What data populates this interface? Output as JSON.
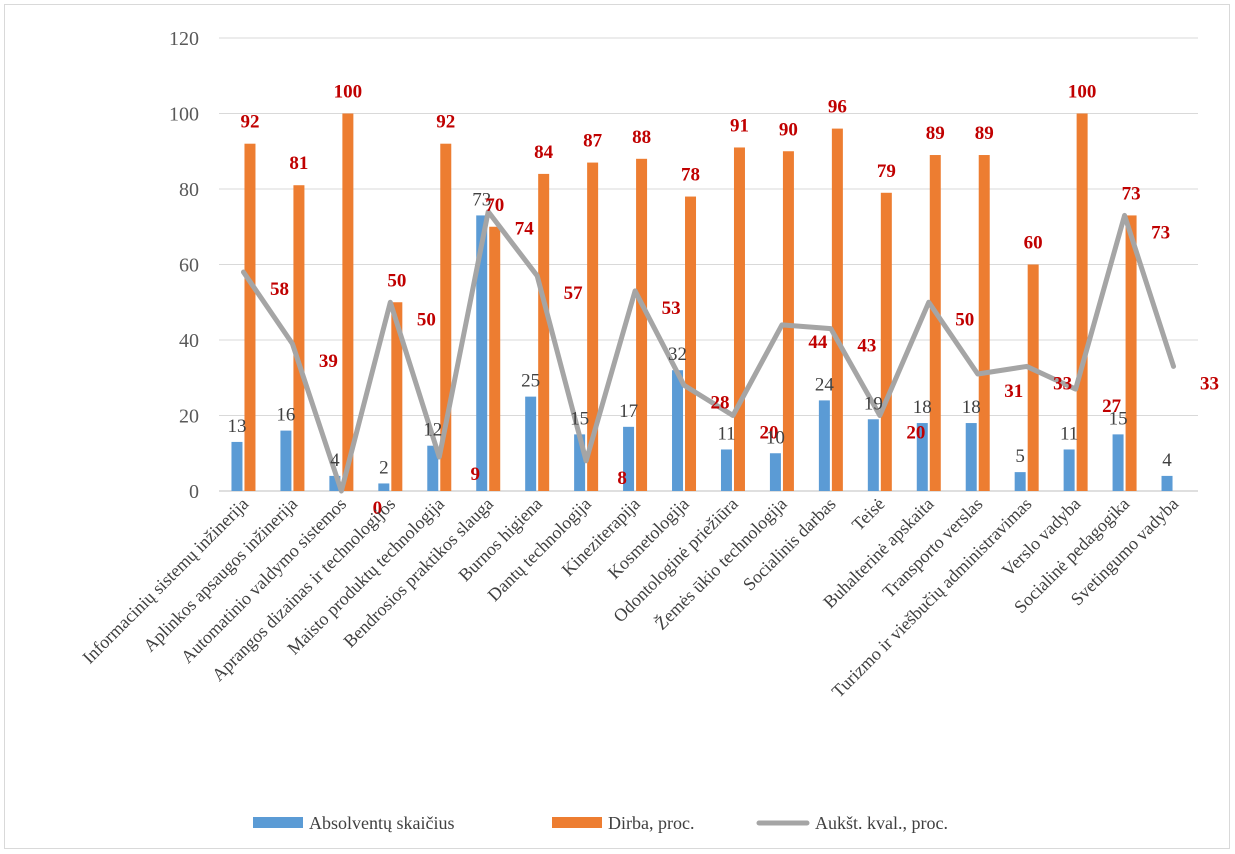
{
  "chart_data": {
    "type": "bar",
    "title": "",
    "xlabel": "",
    "ylabel": "",
    "ylim": [
      0,
      120
    ],
    "yticks": [
      0,
      20,
      40,
      60,
      80,
      100,
      120
    ],
    "grid": true,
    "legend_position": "bottom",
    "categories": [
      "Informacinių sistemų inžinerija",
      "Aplinkos apsaugos inžinerija",
      "Automatinio valdymo sistemos",
      "Aprangos dizainas ir technologijos",
      "Maisto produktų technologija",
      "Bendrosios praktikos slauga",
      "Burnos higiena",
      "Dantų technologija",
      "Kineziterapija",
      "Kosmetologija",
      "Odontologinė priežiūra",
      "Žemės ūkio technologija",
      "Socialinis darbas",
      "Teisė",
      "Buhalterinė apskaita",
      "Transporto verslas",
      "Turizmo ir viešbučių administravimas",
      "Verslo vadyba",
      "Socialinė pedagogika",
      "Svetingumo vadyba"
    ],
    "series": [
      {
        "name": "Absolventų skaičius",
        "type": "bar",
        "color": "#5b9bd5",
        "values": [
          13,
          16,
          4,
          2,
          12,
          73,
          25,
          15,
          17,
          32,
          11,
          10,
          24,
          19,
          18,
          18,
          5,
          11,
          15,
          4
        ]
      },
      {
        "name": "Dirba, proc.",
        "type": "bar",
        "color": "#ed7d31",
        "values": [
          92,
          81,
          100,
          50,
          92,
          70,
          84,
          87,
          88,
          78,
          91,
          90,
          96,
          79,
          89,
          89,
          60,
          100,
          73,
          null
        ]
      },
      {
        "name": "Aukšt. kval., proc.",
        "type": "line",
        "color": "#a5a5a5",
        "values": [
          58,
          39,
          0,
          50,
          9,
          74,
          57,
          8,
          53,
          28,
          20,
          44,
          43,
          20,
          50,
          31,
          33,
          27,
          73,
          33
        ]
      }
    ]
  }
}
